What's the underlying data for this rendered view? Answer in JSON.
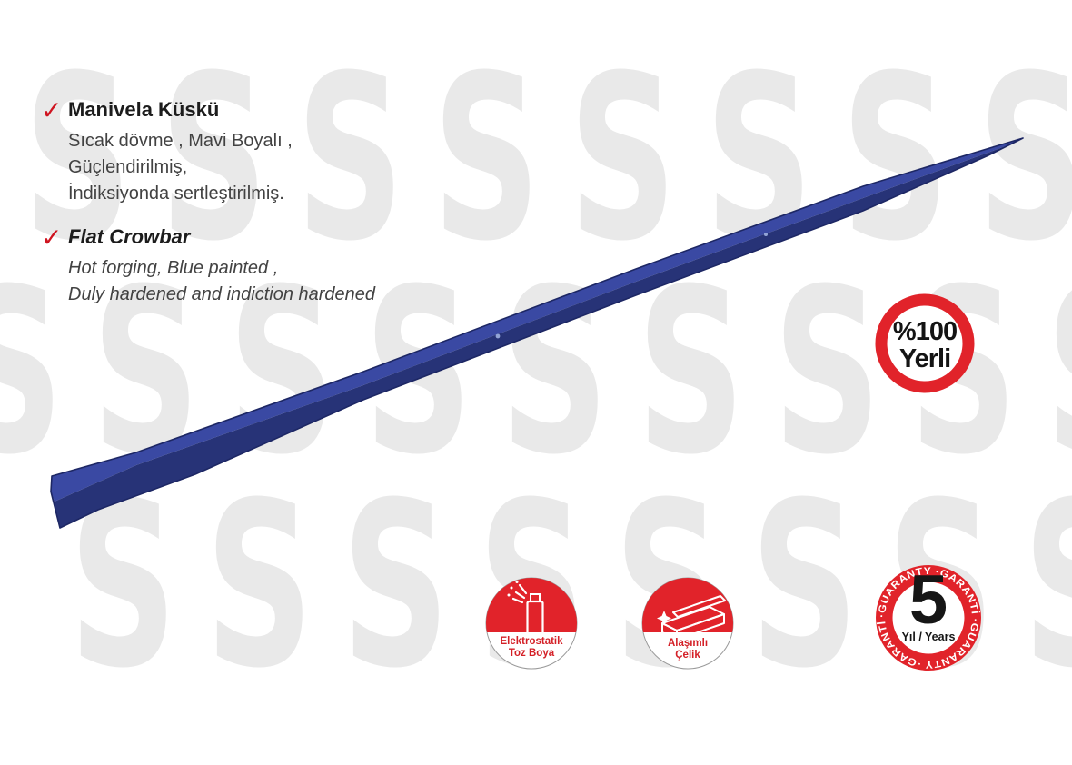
{
  "watermark": {
    "letter": "S",
    "color": "#e9e9e9"
  },
  "checklist": {
    "check_symbol": "✓",
    "check_color": "#cf1420",
    "tr": {
      "title": "Manivela Küskü",
      "lines": [
        "Sıcak dövme , Mavi Boyalı ,",
        "Güçlendirilmiş,",
        "İndiksiyonda sertleştirilmiş."
      ]
    },
    "en": {
      "title": "Flat Crowbar",
      "lines": [
        "Hot forging, Blue painted ,",
        "Duly hardened and indiction hardened"
      ]
    }
  },
  "product": {
    "name": "flat crowbar",
    "body_color": "#32409a",
    "shade_color": "#273377",
    "edge_color": "#1d2764"
  },
  "badge_yerli": {
    "percent": "%100",
    "label": "Yerli",
    "ring_color": "#e1232a",
    "text_color": "#141414"
  },
  "badge_powder": {
    "line1": "Elektrostatik",
    "line2": "Toz Boya",
    "red": "#e1232a"
  },
  "badge_steel": {
    "line1": "Alaşımlı",
    "line2": "Çelik",
    "red": "#e1232a"
  },
  "badge_guarantee": {
    "number": "5",
    "subtitle": "Yıl / Years",
    "ring_text": "·GUARANTY   ·GARANTİ   ·GUARANTY   ·GARANTİ",
    "ring_color": "#e1232a"
  }
}
